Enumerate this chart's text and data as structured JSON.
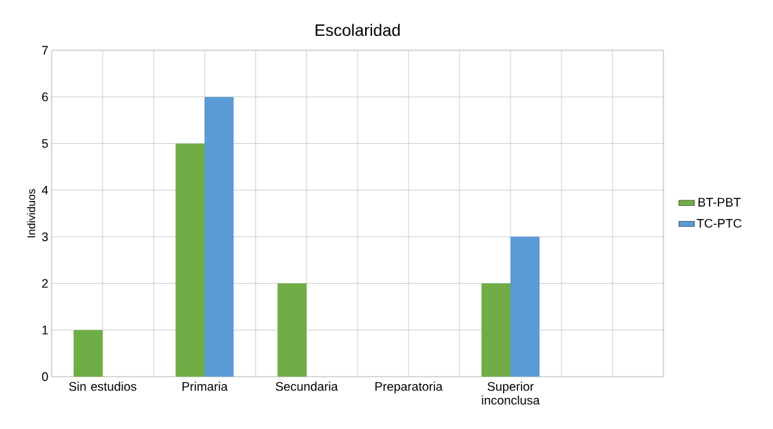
{
  "chart_data": {
    "type": "bar",
    "title": "Escolaridad",
    "ylabel": "Individuos",
    "categories": [
      "Sin estudios",
      "Primaria",
      "Secundaria",
      "Preparatoria",
      "Superior inconclusa",
      null
    ],
    "series": [
      {
        "name": "BT-PBT",
        "color": "#70ad47",
        "values": [
          1,
          5,
          2,
          0,
          2,
          0
        ]
      },
      {
        "name": "TC-PTC",
        "color": "#5b9bd5",
        "values": [
          0,
          6,
          0,
          0,
          3,
          0
        ]
      }
    ],
    "ylim": [
      0,
      7
    ],
    "yticks": [
      0,
      1,
      2,
      3,
      4,
      5,
      6,
      7
    ],
    "grid": true,
    "legend": "right"
  }
}
